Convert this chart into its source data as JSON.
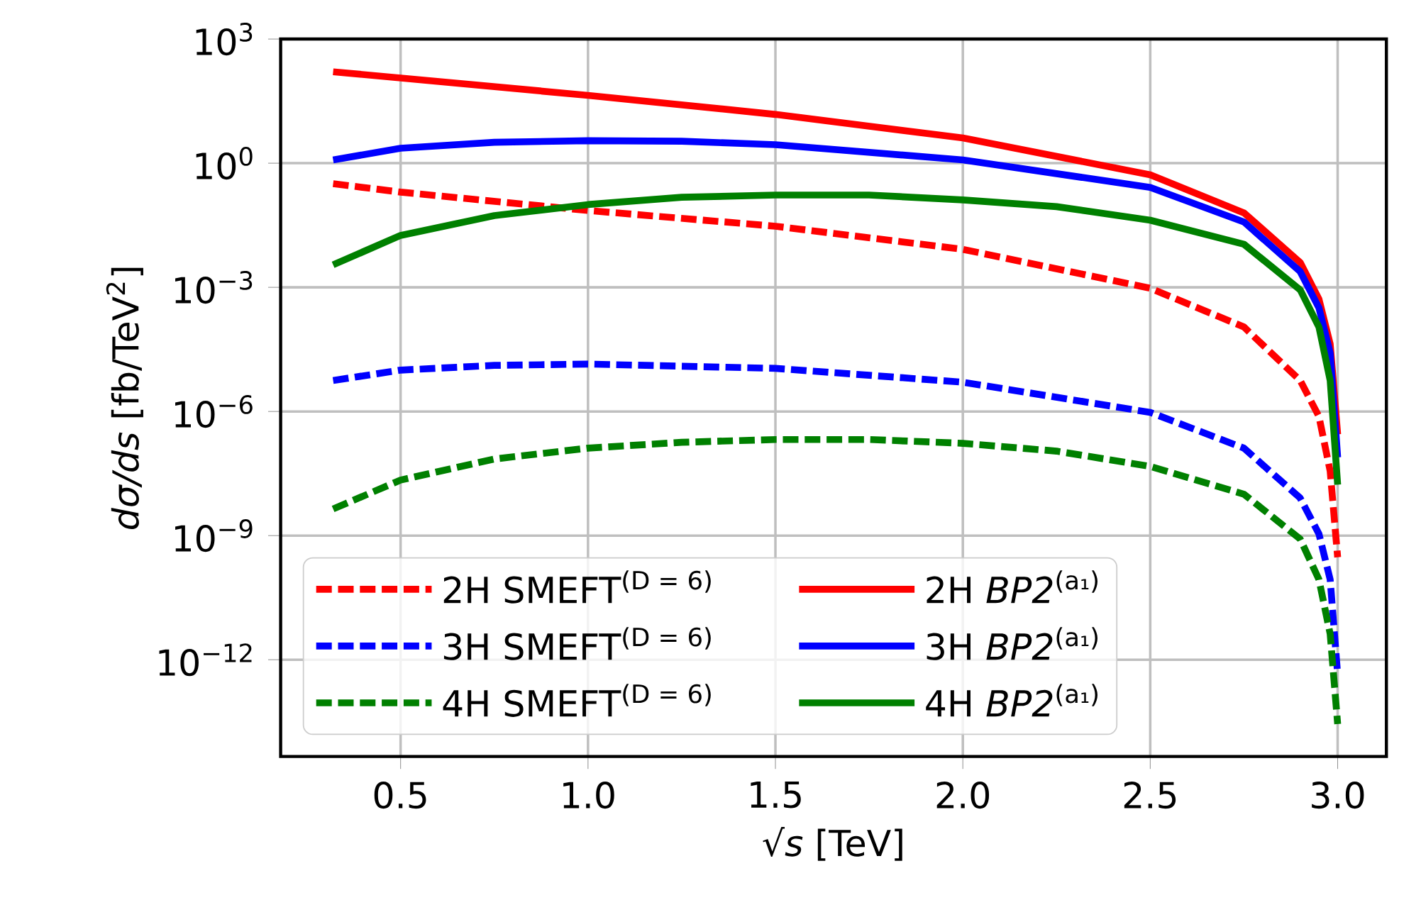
{
  "chart_data": {
    "type": "line",
    "xlabel": "√*s* [TeV]",
    "ylabel": "*dσ/ds* [fb/TeV$^{2}$]",
    "log": "y",
    "grid": true,
    "legend": "bottom left",
    "xlim": [
      0.18,
      3.13
    ],
    "ylim": [
      4.6e-15,
      1000
    ],
    "xticks": [
      {
        "value": 0.5,
        "label": "0.5"
      },
      {
        "value": 1.0,
        "label": "1.0"
      },
      {
        "value": 1.5,
        "label": "1.5"
      },
      {
        "value": 2.0,
        "label": "2.0"
      },
      {
        "value": 2.5,
        "label": "2.5"
      },
      {
        "value": 3.0,
        "label": "3.0"
      }
    ],
    "yticks": [
      {
        "value": 1000,
        "label": "10$^{3}$"
      },
      {
        "value": 1,
        "label": "10$^{0}$"
      },
      {
        "value": 0.001,
        "label": "10$^{−3}$"
      },
      {
        "value": 1e-06,
        "label": "10$^{−6}$"
      },
      {
        "value": 1e-09,
        "label": "10$^{−9}$"
      },
      {
        "value": 1e-12,
        "label": "10$^{−12}$"
      }
    ],
    "series": [
      {
        "name": "2H SMEFT$^{(D = 6)}$",
        "color": "#ff0000",
        "line_style": "dashed",
        "x": [
          0.32,
          0.5,
          1.0,
          1.5,
          2.0,
          2.5,
          2.75,
          2.9,
          2.95,
          2.98,
          3.0
        ],
        "values": [
          0.32,
          0.2,
          0.072,
          0.03,
          0.0083,
          0.00095,
          0.00011,
          5.6e-06,
          7.6e-07,
          3.6e-08,
          3e-10
        ]
      },
      {
        "name": "3H SMEFT$^{(D = 6)}$",
        "color": "#0000ff",
        "line_style": "dashed",
        "x": [
          0.32,
          0.5,
          0.75,
          1.0,
          1.5,
          2.0,
          2.5,
          2.75,
          2.9,
          2.95,
          2.98,
          3.0
        ],
        "values": [
          5.6e-06,
          1e-05,
          1.3e-05,
          1.4e-05,
          1.1e-05,
          5.1e-06,
          9.5e-07,
          1.3e-07,
          8.1e-09,
          1.1e-09,
          8.7e-11,
          4.4e-13
        ]
      },
      {
        "name": "4H SMEFT$^{(D = 6)}$",
        "color": "#008000",
        "line_style": "dashed",
        "x": [
          0.32,
          0.5,
          0.75,
          1.0,
          1.25,
          1.5,
          1.75,
          2.0,
          2.25,
          2.5,
          2.75,
          2.9,
          2.95,
          2.98,
          3.0
        ],
        "values": [
          4.4e-09,
          2.2e-08,
          7.1e-08,
          1.3e-07,
          1.8e-07,
          2.1e-07,
          2.1e-07,
          1.7e-07,
          1.1e-07,
          4.7e-08,
          1e-08,
          8.3e-10,
          8.7e-11,
          4.2e-12,
          2.8e-14
        ]
      },
      {
        "name": "2H *BP2*$^{(a₁)}$",
        "color": "#ff0000",
        "line_style": "solid",
        "x": [
          0.32,
          1.0,
          1.5,
          2.0,
          2.5,
          2.75,
          2.9,
          2.95,
          2.98,
          3.0
        ],
        "values": [
          162,
          43.6,
          15.1,
          4.07,
          0.525,
          0.063,
          0.004,
          0.00052,
          4.3e-05,
          2.8e-07
        ]
      },
      {
        "name": "3H *BP2*$^{(a₁)}$",
        "color": "#0000ff",
        "line_style": "solid",
        "x": [
          0.32,
          0.5,
          0.75,
          1.0,
          1.25,
          1.5,
          2.0,
          2.5,
          2.75,
          2.9,
          2.95,
          2.98,
          3.0
        ],
        "values": [
          1.2,
          2.3,
          3.2,
          3.5,
          3.4,
          2.8,
          1.2,
          0.26,
          0.038,
          0.0024,
          0.00032,
          2.6e-05,
          7.8e-08
        ]
      },
      {
        "name": "4H *BP2*$^{(a₁)}$",
        "color": "#008000",
        "line_style": "solid",
        "x": [
          0.32,
          0.5,
          0.75,
          1.0,
          1.25,
          1.5,
          1.75,
          2.0,
          2.25,
          2.5,
          2.75,
          2.9,
          2.95,
          2.98,
          3.0
        ],
        "values": [
          0.0035,
          0.018,
          0.054,
          0.1,
          0.15,
          0.17,
          0.17,
          0.13,
          0.089,
          0.042,
          0.011,
          0.00087,
          0.00011,
          5.6e-06,
          1.7e-08
        ]
      }
    ]
  }
}
